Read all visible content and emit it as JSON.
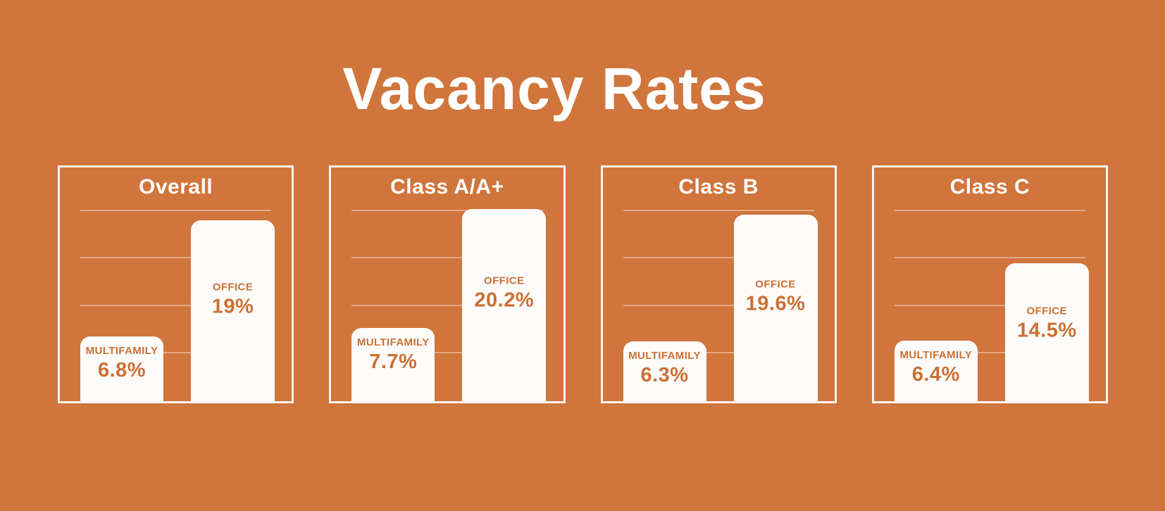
{
  "page": {
    "title": "Vacancy Rates",
    "background_color": "#d0753c",
    "accent_text_color": "#cb7034",
    "panel_border_color": "#faf7f2",
    "bar_fill_color": "#fdfcfa"
  },
  "labels": {
    "multifamily": "MULTIFAMILY",
    "office": "OFFICE"
  },
  "chart_data": {
    "type": "bar",
    "title": "Vacancy Rates",
    "unit": "percent",
    "categories": [
      "Multifamily",
      "Office"
    ],
    "ylim": [
      0,
      21
    ],
    "grid": true,
    "gridlines_percent": [
      5,
      10,
      15,
      20
    ],
    "legend_position": "none",
    "panels": [
      {
        "title": "Overall",
        "multifamily": 6.8,
        "office": 19,
        "multifamily_label": "6.8%",
        "office_label": "19%"
      },
      {
        "title": "Class A/A+",
        "multifamily": 7.7,
        "office": 20.2,
        "multifamily_label": "7.7%",
        "office_label": "20.2%"
      },
      {
        "title": "Class B",
        "multifamily": 6.3,
        "office": 19.6,
        "multifamily_label": "6.3%",
        "office_label": "19.6%"
      },
      {
        "title": "Class C",
        "multifamily": 6.4,
        "office": 14.5,
        "multifamily_label": "6.4%",
        "office_label": "14.5%"
      }
    ]
  }
}
